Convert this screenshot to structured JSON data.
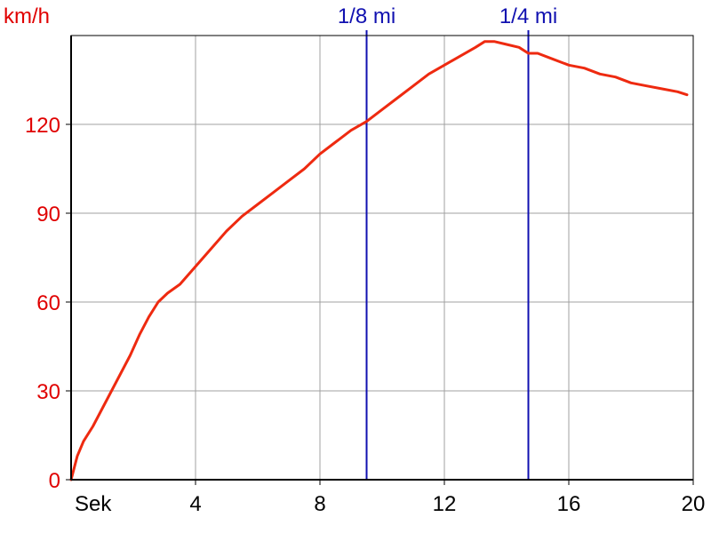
{
  "colors": {
    "series": "#ee2a10",
    "y_axis_text": "#e00000",
    "x_axis_text": "#000000",
    "marker": "#1010b0",
    "grid": "#a0a0a0",
    "axis": "#000000"
  },
  "chart_data": {
    "type": "line",
    "title": "",
    "xlabel": "Sek",
    "ylabel": "km/h",
    "xlim": [
      0,
      20
    ],
    "ylim": [
      0,
      150
    ],
    "grid": true,
    "x_ticks": [
      {
        "value": 4,
        "label": "4"
      },
      {
        "value": 8,
        "label": "8"
      },
      {
        "value": 12,
        "label": "12"
      },
      {
        "value": 16,
        "label": "16"
      },
      {
        "value": 20,
        "label": "20"
      }
    ],
    "y_ticks": [
      {
        "value": 0,
        "label": "0"
      },
      {
        "value": 30,
        "label": "30"
      },
      {
        "value": 60,
        "label": "60"
      },
      {
        "value": 90,
        "label": "90"
      },
      {
        "value": 120,
        "label": "120"
      }
    ],
    "markers": [
      {
        "x": 9.5,
        "label": "1/8 mi"
      },
      {
        "x": 14.7,
        "label": "1/4 mi"
      }
    ],
    "series": [
      {
        "x": [
          0,
          0.2,
          0.4,
          0.7,
          1.0,
          1.3,
          1.6,
          1.9,
          2.2,
          2.5,
          2.8,
          3.1,
          3.5,
          4.0,
          4.5,
          5.0,
          5.5,
          6.0,
          6.5,
          7.0,
          7.5,
          8.0,
          8.5,
          9.0,
          9.5,
          10.0,
          10.5,
          11.0,
          11.5,
          12.0,
          12.5,
          13.0,
          13.3,
          13.6,
          14.0,
          14.4,
          14.7,
          15.0,
          15.5,
          16.0,
          16.5,
          17.0,
          17.5,
          18.0,
          18.5,
          19.0,
          19.5,
          19.8
        ],
        "y": [
          0,
          8,
          13,
          18,
          24,
          30,
          36,
          42,
          49,
          55,
          60,
          63,
          66,
          72,
          78,
          84,
          89,
          93,
          97,
          101,
          105,
          110,
          114,
          118,
          121,
          125,
          129,
          133,
          137,
          140,
          143,
          146,
          148,
          148,
          147,
          146,
          144,
          144,
          142,
          140,
          139,
          137,
          136,
          134,
          133,
          132,
          131,
          130
        ]
      }
    ]
  }
}
